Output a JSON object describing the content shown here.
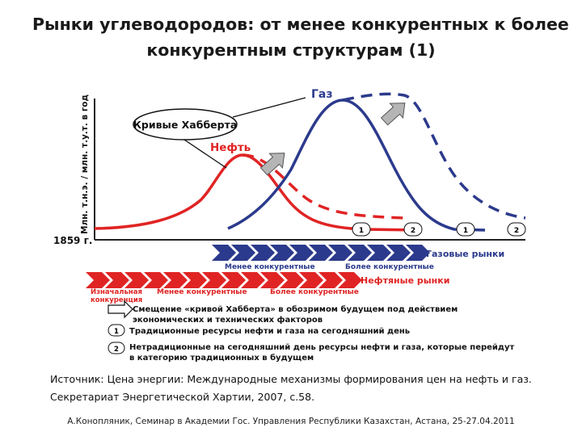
{
  "title": {
    "line1": "Рынки углеводородов: от менее конкурентных к более",
    "line2": "конкурентным структурам (1)"
  },
  "diagram": {
    "y_axis_label": "Млн. т.н.э. / млн. т.у.т. в год",
    "x_axis_start": "1859 г.",
    "callout": "Кривые Хабберта",
    "oil_label": "Нефть",
    "gas_label": "Газ",
    "markers": [
      "1",
      "2",
      "1",
      "2"
    ],
    "gas_band": {
      "less": "Менее конкурентные",
      "more": "Более конкурентные",
      "market": "Газовые рынки"
    },
    "oil_band": {
      "initial_line1": "Изначальная",
      "initial_line2": "конкуренция",
      "less": "Менее конкурентные",
      "more": "Более конкурентные",
      "market": "Нефтяные рынки"
    },
    "colors": {
      "oil": "#e02424",
      "gas": "#2b3a8c",
      "arrow": "#b0b0b0"
    }
  },
  "legend": {
    "shift_line1": "Смещение «кривой Хабберта» в обозримом будущем под действием",
    "shift_line2": "экономических и технических факторов",
    "item1_marker": "1",
    "item1_text": "Традиционные ресурсы нефти и газа на сегодняшний день",
    "item2_marker": "2",
    "item2_line1": "Нетрадиционные на сегодняшний день ресурсы нефти и газа, которые перейдут",
    "item2_line2": "в категорию традиционных в будущем"
  },
  "source": {
    "line1": "Источник: Цена энергии: Международные механизмы формирования цен на нефть и газ.",
    "line2": "Секретариат Энергетической Хартии, 2007, с.58."
  },
  "footer": "А.Конопляник, Семинар в Академии Гос. Управления Республики Казахстан, Астана, 25-27.04.2011"
}
